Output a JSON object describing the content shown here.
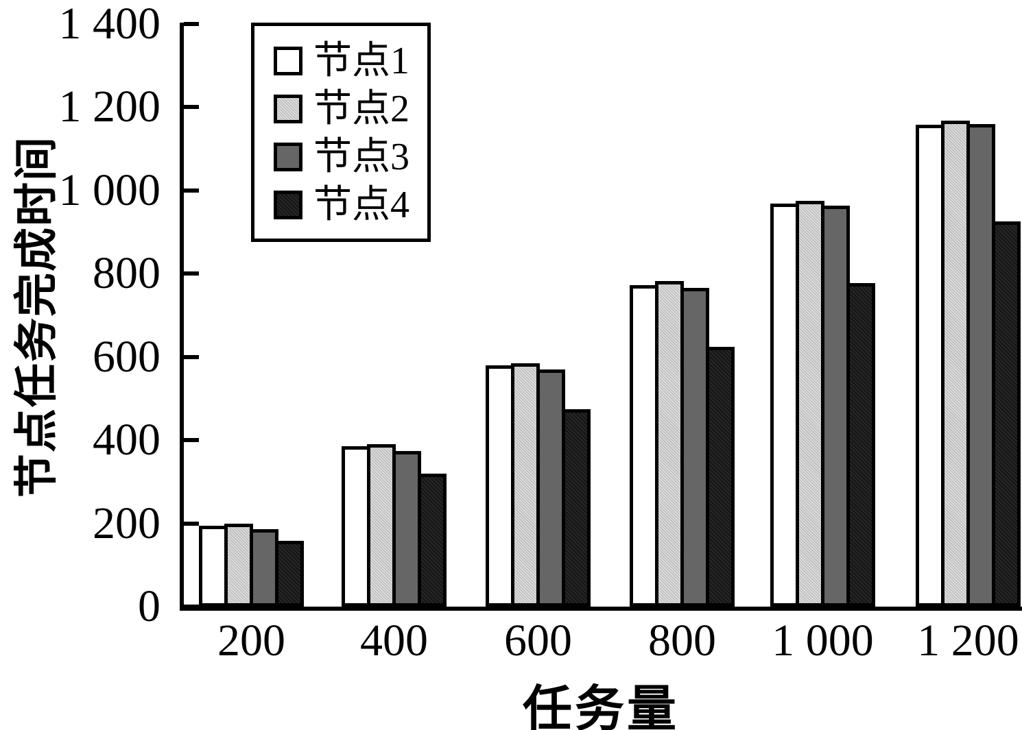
{
  "chart_data": {
    "type": "bar",
    "title": "",
    "xlabel": "任务量",
    "ylabel": "节点任务完成时间",
    "categories": [
      "200",
      "400",
      "600",
      "800",
      "1 000",
      "1 200"
    ],
    "series": [
      {
        "name": "节点1",
        "color": "#ffffff",
        "values": [
          195,
          385,
          580,
          773,
          968,
          1158
        ]
      },
      {
        "name": "节点2",
        "color": "#c7c7c7",
        "values": [
          200,
          390,
          585,
          782,
          975,
          1168
        ]
      },
      {
        "name": "节点3",
        "color": "#666666",
        "values": [
          186,
          374,
          570,
          766,
          964,
          1160
        ]
      },
      {
        "name": "节点4",
        "color": "#151515",
        "values": [
          158,
          320,
          475,
          625,
          777,
          925
        ]
      }
    ],
    "ylim": [
      0,
      1400
    ],
    "ytick_step": 200,
    "ytick_labels": [
      "0",
      "200",
      "400",
      "600",
      "800",
      "1 000",
      "1 200",
      "1 400"
    ],
    "legend_position": "top-left-inside",
    "grid": false,
    "axis_color": "#000000",
    "bar_outline_color": "#000000"
  }
}
